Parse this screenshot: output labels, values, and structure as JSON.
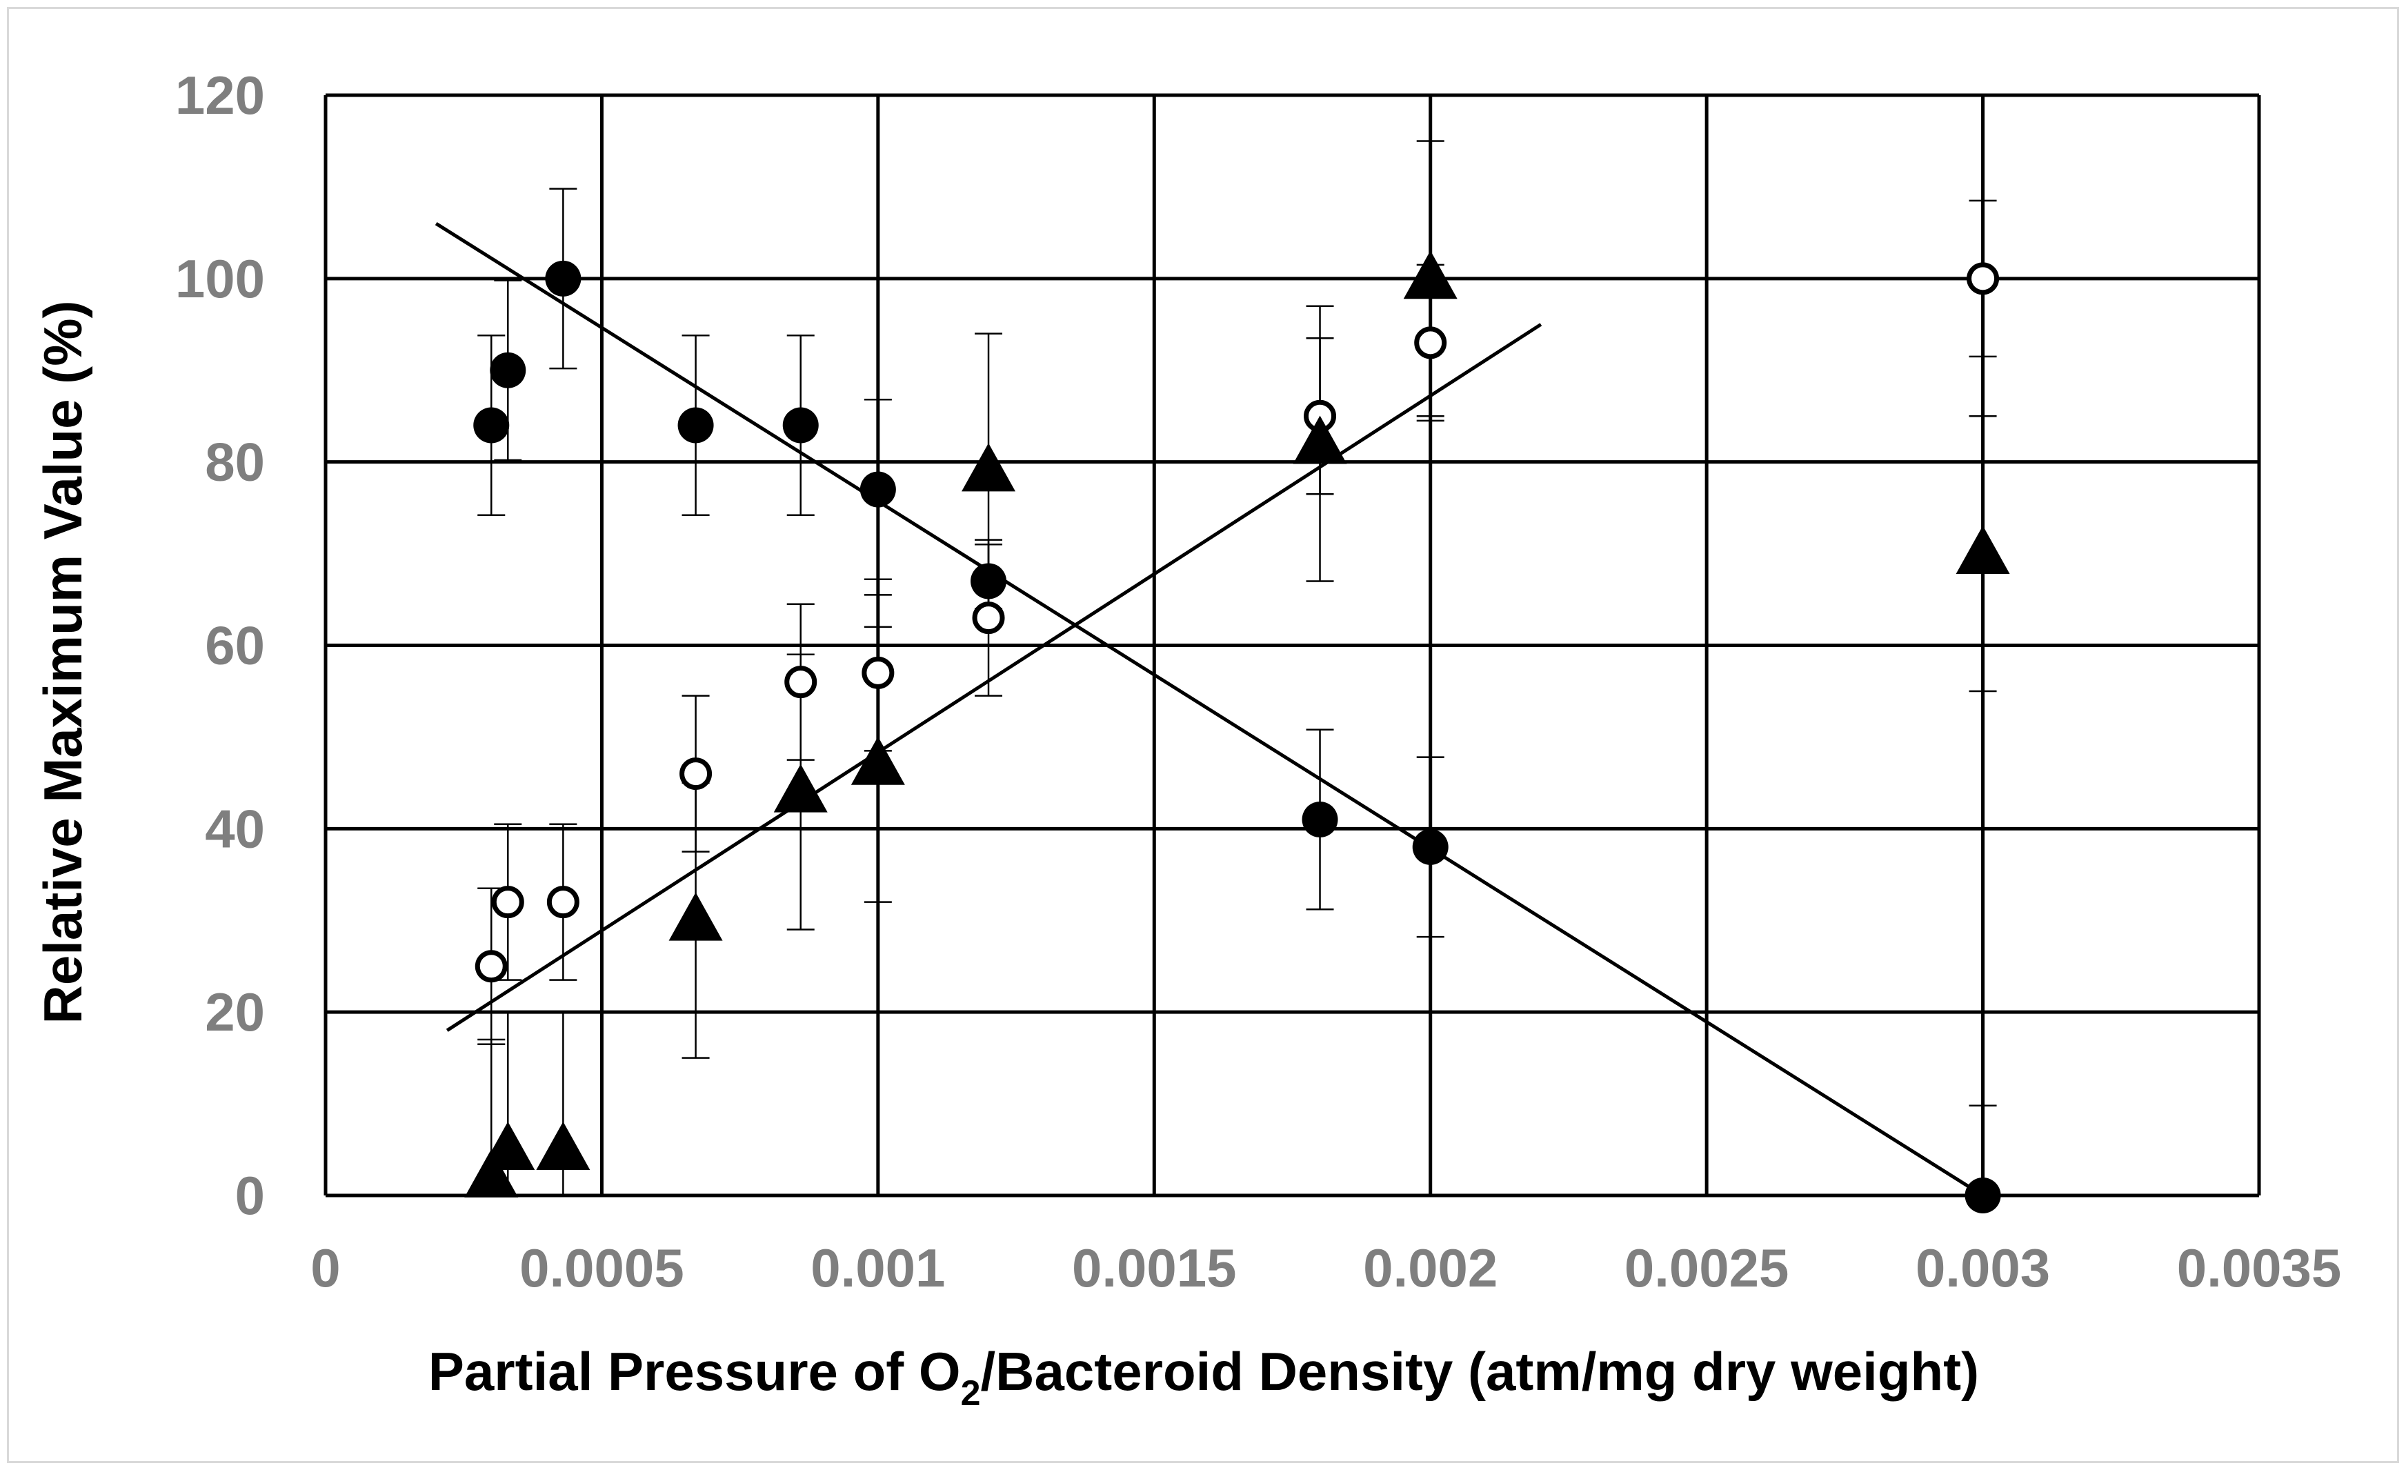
{
  "chart_data": {
    "type": "scatter",
    "title": "",
    "xlabel_main": "Partial Pressure of O",
    "xlabel_sub": "2",
    "xlabel_rest": "/Bacteroid Density (atm/mg dry weight)",
    "ylabel": "Relative Maximum Value (%)",
    "xlim": [
      0,
      0.0035
    ],
    "ylim": [
      0,
      120
    ],
    "x_ticks": [
      0,
      0.0005,
      0.001,
      0.0015,
      0.002,
      0.0025,
      0.003,
      0.0035
    ],
    "x_tick_labels": [
      "0",
      "0.0005",
      "0.001",
      "0.0015",
      "0.002",
      "0.0025",
      "0.003",
      "0.0035"
    ],
    "y_ticks": [
      0,
      20,
      40,
      60,
      80,
      100,
      120
    ],
    "y_tick_labels": [
      "0",
      "20",
      "40",
      "60",
      "80",
      "100",
      "120"
    ],
    "grid": true,
    "series": [
      {
        "name": "filled-circles",
        "marker": "filled-circle",
        "points": [
          {
            "x": 0.0003,
            "y": 84,
            "err": 9.8
          },
          {
            "x": 0.00033,
            "y": 90,
            "err": 9.8
          },
          {
            "x": 0.00043,
            "y": 100,
            "err": 9.8
          },
          {
            "x": 0.00067,
            "y": 84,
            "err": 9.8
          },
          {
            "x": 0.00086,
            "y": 84,
            "err": 9.8
          },
          {
            "x": 0.001,
            "y": 77,
            "err": 9.8
          },
          {
            "x": 0.0012,
            "y": 67,
            "err": 4
          },
          {
            "x": 0.0018,
            "y": 41,
            "err": 9.8
          },
          {
            "x": 0.002,
            "y": 38,
            "err": 9.8
          },
          {
            "x": 0.003,
            "y": 0,
            "err": 9.8
          }
        ]
      },
      {
        "name": "open-circles",
        "marker": "open-circle",
        "points": [
          {
            "x": 0.0003,
            "y": 25,
            "err": 8.5
          },
          {
            "x": 0.00033,
            "y": 32,
            "err": 8.5
          },
          {
            "x": 0.00043,
            "y": 32,
            "err": 8.5
          },
          {
            "x": 0.00067,
            "y": 46,
            "err": 8.5
          },
          {
            "x": 0.00086,
            "y": 56,
            "err": 8.5
          },
          {
            "x": 0.001,
            "y": 57,
            "err": 8.5
          },
          {
            "x": 0.0012,
            "y": 63,
            "err": 8.5
          },
          {
            "x": 0.0018,
            "y": 85,
            "err": 8.5
          },
          {
            "x": 0.002,
            "y": 93,
            "err": 8.5
          },
          {
            "x": 0.003,
            "y": 100,
            "err": 8.5
          }
        ]
      },
      {
        "name": "triangles",
        "marker": "filled-triangle",
        "points": [
          {
            "x": 0.0003,
            "y": 2,
            "err": 15
          },
          {
            "x": 0.00033,
            "y": 5,
            "err": 15
          },
          {
            "x": 0.00043,
            "y": 5,
            "err": 15
          },
          {
            "x": 0.00067,
            "y": 30,
            "err": 15
          },
          {
            "x": 0.00086,
            "y": 44,
            "err": 15
          },
          {
            "x": 0.001,
            "y": 47,
            "err": 15
          },
          {
            "x": 0.0012,
            "y": 79,
            "err": 15
          },
          {
            "x": 0.0018,
            "y": 82,
            "err": 15
          },
          {
            "x": 0.002,
            "y": 100,
            "err": 15
          },
          {
            "x": 0.003,
            "y": 70,
            "err": 15
          }
        ]
      }
    ],
    "trendlines": [
      {
        "name": "decreasing-trendline",
        "x1": 0.0002,
        "y1": 106,
        "x2": 0.003,
        "y2": 0
      },
      {
        "name": "increasing-trendline",
        "x1": 0.00022,
        "y1": 18,
        "x2": 0.0022,
        "y2": 95
      }
    ]
  }
}
